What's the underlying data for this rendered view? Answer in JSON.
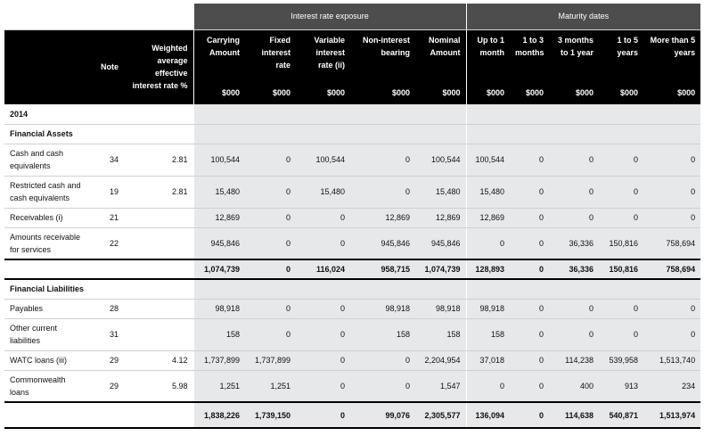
{
  "header": {
    "group_interest": "Interest rate exposure",
    "group_maturity": "Maturity dates",
    "columns": [
      {
        "label": "",
        "unit": ""
      },
      {
        "label": "Note",
        "unit": ""
      },
      {
        "label": "Weighted average effective interest rate %",
        "unit": ""
      },
      {
        "label": "Carrying Amount",
        "unit": "$000"
      },
      {
        "label": "Fixed interest rate",
        "unit": "$000"
      },
      {
        "label": "Variable interest rate (ii)",
        "unit": "$000"
      },
      {
        "label": "Non-interest bearing",
        "unit": "$000"
      },
      {
        "label": "Nominal Amount",
        "unit": "$000"
      },
      {
        "label": "Up to 1 month",
        "unit": "$000"
      },
      {
        "label": "1 to 3 months",
        "unit": "$000"
      },
      {
        "label": "3 months to 1 year",
        "unit": "$000"
      },
      {
        "label": "1 to 5 years",
        "unit": "$000"
      },
      {
        "label": "More than 5 years",
        "unit": "$000"
      }
    ]
  },
  "year": "2014",
  "sections": {
    "assets_title": "Financial Assets",
    "liabilities_title": "Financial Liabilities"
  },
  "rows": {
    "cash": [
      "Cash and cash equivalents",
      "34",
      "2.81",
      "100,544",
      "0",
      "100,544",
      "0",
      "100,544",
      "100,544",
      "0",
      "0",
      "0",
      "0"
    ],
    "restricted": [
      "Restricted cash and cash equivalents",
      "19",
      "2.81",
      "15,480",
      "0",
      "15,480",
      "0",
      "15,480",
      "15,480",
      "0",
      "0",
      "0",
      "0"
    ],
    "receivables": [
      "Receivables (i)",
      "21",
      "",
      "12,869",
      "0",
      "0",
      "12,869",
      "12,869",
      "12,869",
      "0",
      "0",
      "0",
      "0"
    ],
    "amounts": [
      "Amounts receivable for services",
      "22",
      "",
      "945,846",
      "0",
      "0",
      "945,846",
      "945,846",
      "0",
      "0",
      "36,336",
      "150,816",
      "758,694"
    ],
    "assets_total": [
      "",
      "",
      "",
      "1,074,739",
      "0",
      "116,024",
      "958,715",
      "1,074,739",
      "128,893",
      "0",
      "36,336",
      "150,816",
      "758,694"
    ],
    "payables": [
      "Payables",
      "28",
      "",
      "98,918",
      "0",
      "0",
      "98,918",
      "98,918",
      "98,918",
      "0",
      "0",
      "0",
      "0"
    ],
    "other": [
      "Other current liabilities",
      "31",
      "",
      "158",
      "0",
      "0",
      "158",
      "158",
      "158",
      "0",
      "0",
      "0",
      "0"
    ],
    "watc": [
      "WATC loans (iii)",
      "29",
      "4.12",
      "1,737,899",
      "1,737,899",
      "0",
      "0",
      "2,204,954",
      "37,018",
      "0",
      "114,238",
      "539,958",
      "1,513,740"
    ],
    "commonwealth": [
      "Commonwealth loans",
      "29",
      "5.98",
      "1,251",
      "1,251",
      "0",
      "0",
      "1,547",
      "0",
      "0",
      "400",
      "913",
      "234"
    ],
    "liabilities_total": [
      "",
      "",
      "",
      "1,838,226",
      "1,739,150",
      "0",
      "99,076",
      "2,305,577",
      "136,094",
      "0",
      "114,638",
      "540,871",
      "1,513,974"
    ]
  }
}
